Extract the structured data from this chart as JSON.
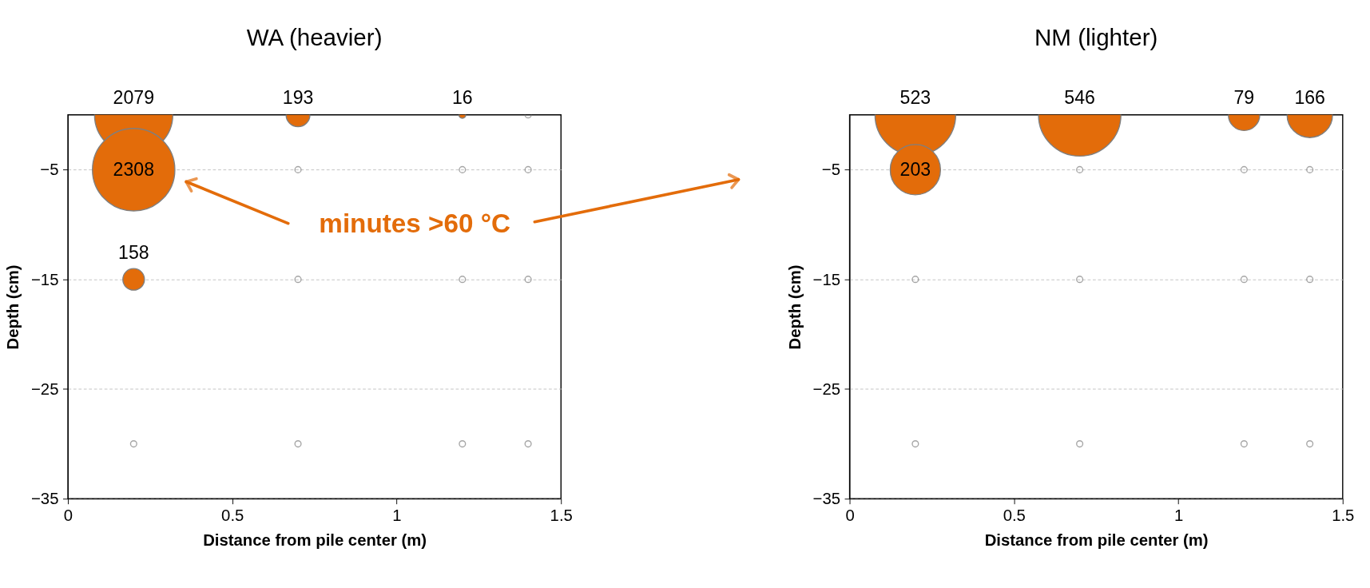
{
  "chart_data": [
    {
      "type": "bubble",
      "title": "WA (heavier)",
      "xlabel": "Distance from pile center (m)",
      "ylabel": "Depth (cm)",
      "xlim": [
        0,
        1.5
      ],
      "xticks": [
        0,
        0.5,
        1,
        1.5
      ],
      "ylim": [
        -35,
        0
      ],
      "yticks": [
        -35,
        -25,
        -15,
        -5
      ],
      "grid": "y",
      "annotations": [
        "minutes >60 °C",
        {
          "text": "2079",
          "x": 0.2,
          "y": 0
        },
        {
          "text": "193",
          "x": 0.7,
          "y": 0
        },
        {
          "text": "16",
          "x": 1.2,
          "y": 0
        },
        {
          "text": "2308",
          "x": 0.2,
          "y": -5
        },
        {
          "text": "158",
          "x": 0.2,
          "y": -15
        }
      ],
      "series": [
        {
          "color": "#e36c0a",
          "x": [
            0.2,
            0.7,
            1.2,
            0.2,
            0.2
          ],
          "values": [
            0,
            0,
            0,
            -5,
            -15
          ],
          "sizes": [
            0.901,
            0.0836,
            0.0069,
            1,
            0.0685
          ]
        },
        {
          "type": "scatter",
          "color": "#808080",
          "marker": "circle",
          "x": [
            1.4,
            0.7,
            1.2,
            1.4,
            0.7,
            1.2,
            1.4,
            0.2,
            0.7,
            1.2,
            1.4
          ],
          "values": [
            0,
            -5,
            -5,
            -5,
            -15,
            -15,
            -15,
            -30,
            -30,
            -30,
            -30
          ]
        }
      ]
    },
    {
      "type": "bubble",
      "title": "NM (lighter)",
      "xlabel": "Distance from pile center (m)",
      "ylabel": "Depth (cm)",
      "xlim": [
        0,
        1.5
      ],
      "xticks": [
        0,
        0.5,
        1,
        1.5
      ],
      "ylim": [
        -35,
        0
      ],
      "yticks": [
        -35,
        -25,
        -15,
        -5
      ],
      "grid": "y",
      "annotations": [
        {
          "text": "523",
          "x": 0.2,
          "y": 0
        },
        {
          "text": "546",
          "x": 0.7,
          "y": 0
        },
        {
          "text": "79",
          "x": 1.2,
          "y": 0
        },
        {
          "text": "166",
          "x": 1.4,
          "y": 0
        },
        {
          "text": "203",
          "x": 0.2,
          "y": -5
        }
      ],
      "series": [
        {
          "color": "#e36c0a",
          "x": [
            0.2,
            0.7,
            1.2,
            1.4,
            0.2
          ],
          "values": [
            0,
            0,
            0,
            0,
            -5
          ],
          "sizes": [
            0.958,
            1,
            0.145,
            0.304,
            0.372
          ]
        },
        {
          "type": "scatter",
          "color": "#808080",
          "marker": "circle",
          "x": [
            0.7,
            1.2,
            1.4,
            0.2,
            0.7,
            1.2,
            1.4,
            0.2,
            0.7,
            1.2,
            1.4
          ],
          "values": [
            -5,
            -5,
            -5,
            -15,
            -15,
            -15,
            -15,
            -30,
            -30,
            -30,
            -30
          ]
        }
      ]
    }
  ]
}
